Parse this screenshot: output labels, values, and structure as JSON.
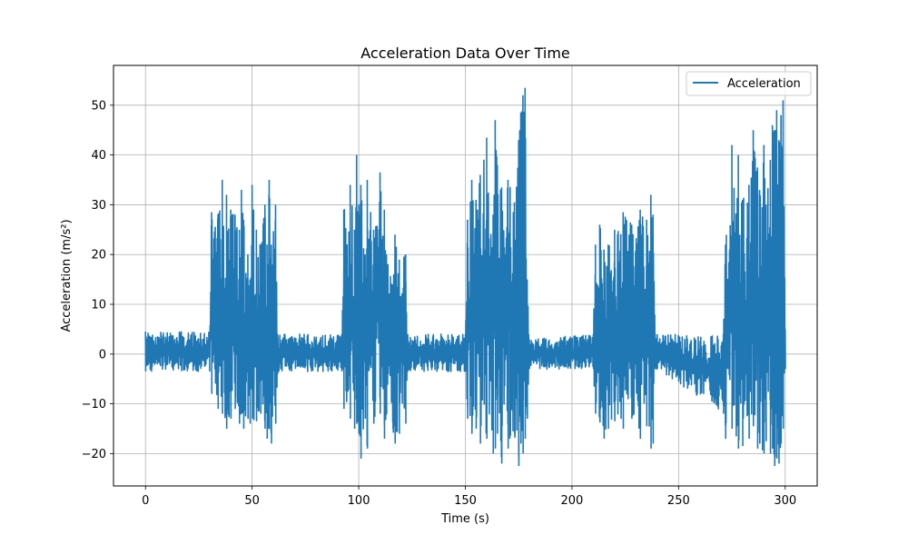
{
  "chart_data": {
    "type": "line",
    "title": "Acceleration Data Over Time",
    "xlabel": "Time (s)",
    "ylabel": "Acceleration (m/s²)",
    "xlim": [
      -15,
      315
    ],
    "ylim": [
      -26.5,
      58
    ],
    "xticks": [
      0,
      50,
      100,
      150,
      200,
      250,
      300
    ],
    "yticks": [
      -20,
      -10,
      0,
      10,
      20,
      30,
      40,
      50
    ],
    "grid": true,
    "legend_position": "top-right",
    "series": [
      {
        "name": "Acceleration",
        "color": "#1f77b4",
        "x": [
          0,
          30,
          31,
          34,
          36,
          38,
          40,
          42,
          44,
          45,
          46,
          48,
          49,
          50,
          52,
          54,
          56,
          57,
          58,
          59,
          61,
          62,
          92,
          93,
          96,
          98,
          99,
          100,
          101,
          103,
          104,
          107,
          110,
          112,
          113,
          116,
          117,
          119,
          122,
          123,
          150,
          151,
          153,
          155,
          157,
          160,
          163,
          164,
          165,
          167,
          170,
          173,
          175,
          176,
          177,
          178,
          179,
          180,
          210,
          211,
          213,
          215,
          217,
          220,
          224,
          228,
          232,
          235,
          237,
          238,
          239,
          240,
          271,
          272,
          275,
          278,
          280,
          283,
          285,
          287,
          288,
          290,
          291,
          293,
          294,
          295,
          296,
          297,
          298,
          299,
          300
        ],
        "y_upper": [
          4.5,
          4.5,
          28.5,
          28,
          35,
          32,
          29,
          28,
          25,
          33,
          27,
          20,
          15,
          34,
          25,
          22,
          30,
          22,
          35,
          22,
          30,
          4,
          4,
          29,
          34,
          25,
          40,
          30,
          34,
          20,
          35,
          25,
          36.5,
          29,
          20,
          14,
          24,
          19,
          20,
          4,
          4,
          27,
          35,
          31,
          36,
          43.5,
          28,
          47,
          38,
          33.5,
          35,
          30.5,
          43,
          48.5,
          52,
          53.5,
          15,
          3,
          4,
          22,
          26,
          21,
          22,
          25,
          28.5,
          26,
          29,
          27,
          32,
          28,
          4,
          4,
          4,
          22,
          42,
          40,
          31,
          34,
          45,
          37.5,
          33,
          42,
          30,
          39,
          46,
          45,
          49,
          43,
          48,
          51,
          5
        ],
        "y_lower": [
          -3.5,
          -3.5,
          -8,
          -11,
          -12,
          -15,
          -13,
          -11,
          -14,
          -12,
          -15,
          -13,
          -14,
          -13,
          -13.5,
          -12,
          -15,
          -17,
          -15,
          -18,
          -14,
          -3.5,
          -3.5,
          -11,
          -13,
          -15,
          -14,
          -16,
          -21,
          -13,
          -19,
          -14,
          -12,
          -17,
          -12,
          -15,
          -18,
          -16,
          -14,
          -3.5,
          -3.5,
          -13,
          -16,
          -15,
          -18,
          -17,
          -20,
          -19,
          -16,
          -22,
          -19,
          -16,
          -22.5,
          -18,
          -20,
          -17,
          -13,
          -3,
          -3,
          -12,
          -13.5,
          -17,
          -15,
          -13.5,
          -15,
          -13,
          -17,
          -14.5,
          -19,
          -18,
          -3,
          -3,
          -12,
          -17,
          -15,
          -19,
          -18.5,
          -17,
          -14.5,
          -19,
          -18,
          -20,
          -17.5,
          -20,
          -19,
          -22.5,
          -21,
          -22,
          -18,
          -15,
          -3
        ]
      }
    ]
  }
}
